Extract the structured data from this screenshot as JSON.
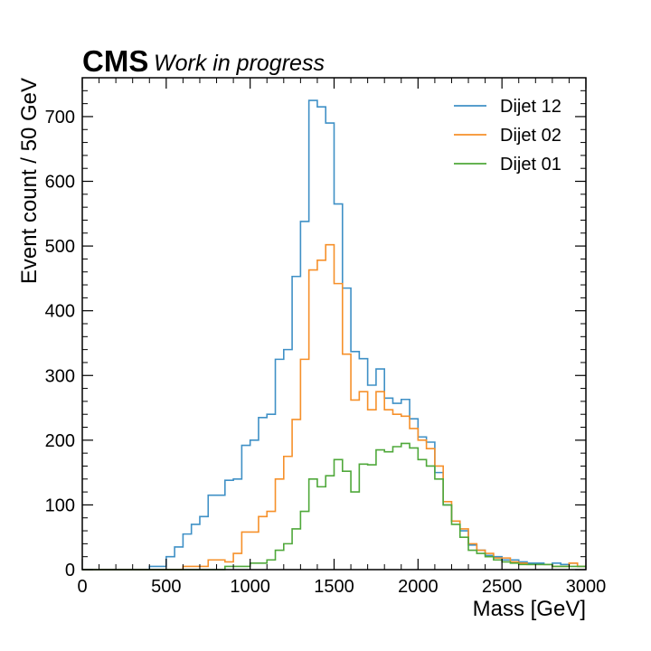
{
  "chart_data": {
    "type": "histogram-step",
    "experiment_label": "CMS",
    "status_label": "Work in progress",
    "xlabel": "Mass [GeV]",
    "ylabel": "Event count / 50 GeV",
    "xlim": [
      0,
      3000
    ],
    "ylim": [
      0,
      760
    ],
    "xticks": [
      0,
      500,
      1000,
      1500,
      2000,
      2500,
      3000
    ],
    "yticks": [
      0,
      100,
      200,
      300,
      400,
      500,
      600,
      700
    ],
    "legend_position": "top-right",
    "bin_width": 50,
    "bin_start": 0,
    "series": [
      {
        "name": "Dijet 12",
        "color": "#3f90c6",
        "values": [
          0,
          0,
          0,
          0,
          0,
          0,
          0,
          0,
          5,
          5,
          20,
          35,
          55,
          70,
          82,
          115,
          115,
          138,
          140,
          192,
          200,
          235,
          240,
          325,
          340,
          453,
          538,
          725,
          715,
          690,
          565,
          435,
          337,
          326,
          285,
          310,
          265,
          257,
          263,
          233,
          205,
          197,
          150,
          100,
          75,
          60,
          38,
          30,
          22,
          20,
          15,
          15,
          12,
          10,
          10,
          8,
          10,
          8,
          10,
          5
        ]
      },
      {
        "name": "Dijet 02",
        "color": "#f6902a",
        "values": [
          0,
          0,
          0,
          0,
          0,
          0,
          0,
          0,
          0,
          0,
          0,
          0,
          5,
          5,
          5,
          15,
          15,
          12,
          25,
          58,
          58,
          82,
          90,
          140,
          175,
          232,
          325,
          463,
          478,
          502,
          442,
          333,
          262,
          275,
          247,
          275,
          247,
          240,
          237,
          218,
          200,
          187,
          160,
          105,
          75,
          63,
          40,
          30,
          25,
          18,
          18,
          12,
          10,
          8,
          8,
          8,
          5,
          5,
          10,
          5
        ]
      },
      {
        "name": "Dijet 01",
        "color": "#4fa83a",
        "values": [
          0,
          0,
          0,
          0,
          0,
          0,
          0,
          0,
          0,
          0,
          0,
          0,
          0,
          0,
          0,
          0,
          0,
          5,
          5,
          5,
          10,
          10,
          15,
          30,
          40,
          63,
          90,
          140,
          128,
          145,
          170,
          152,
          120,
          163,
          162,
          185,
          182,
          190,
          195,
          188,
          170,
          160,
          140,
          100,
          70,
          50,
          30,
          25,
          20,
          15,
          12,
          10,
          8,
          8,
          8,
          8,
          5,
          5,
          5,
          5
        ]
      }
    ]
  }
}
